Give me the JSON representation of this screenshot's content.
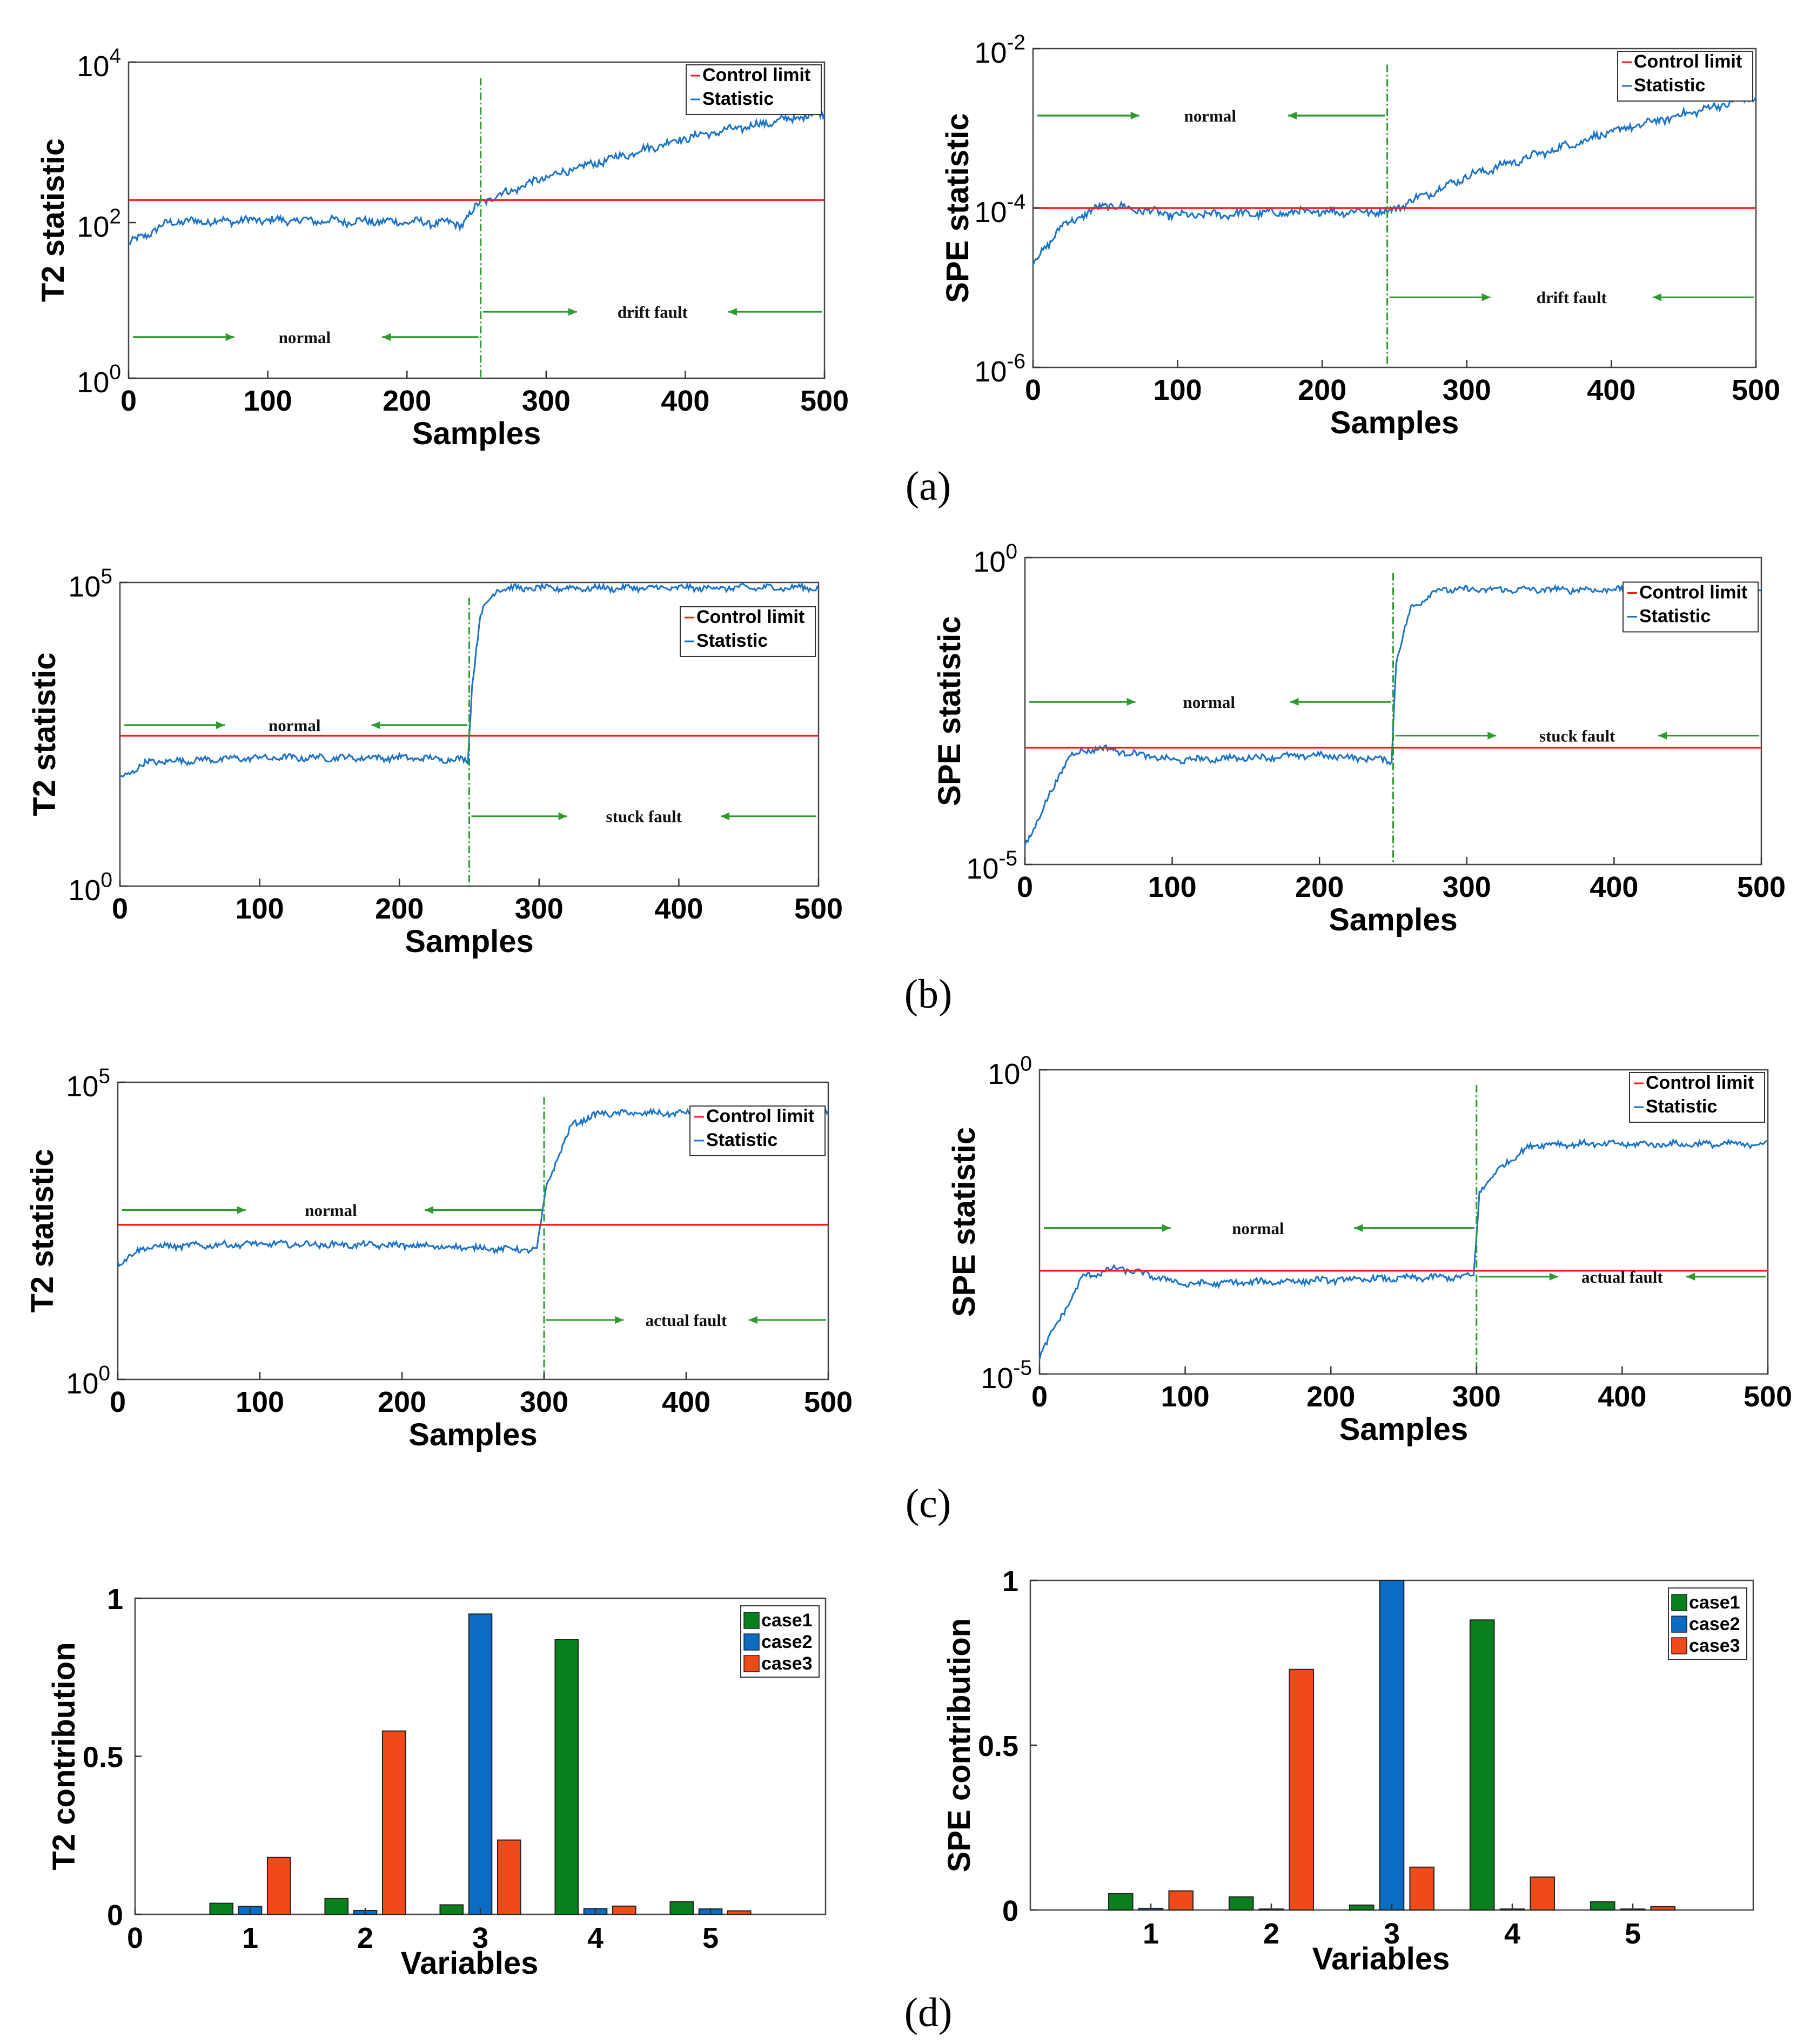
{
  "panel_labels": [
    "(a)",
    "(b)",
    "(c)",
    "(d)"
  ],
  "colors": {
    "statistic": "#1a73c8",
    "control_limit": "#ff1a1a",
    "fault_marker": "#2e9a2e",
    "arrow": "#2e9a2e",
    "case1": "#0a7f1d",
    "case2": "#0a6cc2",
    "case3": "#f04a1a"
  },
  "chart_data": [
    {
      "id": "a-t2",
      "type": "line",
      "scale": "log",
      "ylabel": "T2 statistic",
      "xlabel": "Samples",
      "xlim": [
        0,
        500
      ],
      "ylim": [
        1,
        10000
      ],
      "x_ticks": [
        "0",
        "100",
        "200",
        "300",
        "400",
        "500"
      ],
      "y_ticks": [
        {
          "base": "10",
          "exp": "0"
        },
        {
          "base": "10",
          "exp": "2"
        },
        {
          "base": "10",
          "exp": "4"
        }
      ],
      "legend": {
        "position": "top-right",
        "entries": [
          "Control limit",
          "Statistic"
        ]
      },
      "control_limit": 180,
      "fault_start": 253,
      "annotations": {
        "normal": "normal",
        "fault": "drift fault"
      },
      "statistic_profile": [
        [
          0,
          50
        ],
        [
          30,
          95
        ],
        [
          100,
          100
        ],
        [
          200,
          95
        ],
        [
          240,
          90
        ],
        [
          253,
          170
        ],
        [
          300,
          350
        ],
        [
          400,
          1100
        ],
        [
          500,
          2300
        ]
      ]
    },
    {
      "id": "a-spe",
      "type": "line",
      "scale": "log",
      "ylabel": "SPE statistic",
      "xlabel": "Samples",
      "xlim": [
        0,
        500
      ],
      "ylim": [
        1e-06,
        0.01
      ],
      "x_ticks": [
        "0",
        "100",
        "200",
        "300",
        "400",
        "500"
      ],
      "y_ticks": [
        {
          "base": "10",
          "exp": "-6"
        },
        {
          "base": "10",
          "exp": "-4"
        },
        {
          "base": "10",
          "exp": "-2"
        }
      ],
      "legend": {
        "position": "top-right",
        "entries": [
          "Control limit",
          "Statistic"
        ]
      },
      "control_limit": 0.0001,
      "fault_start": 245,
      "annotations": {
        "normal": "normal",
        "fault": "drift fault"
      },
      "statistic_profile": [
        [
          0,
          2e-05
        ],
        [
          20,
          6e-05
        ],
        [
          50,
          0.00011
        ],
        [
          100,
          8e-05
        ],
        [
          200,
          9e-05
        ],
        [
          245,
          9e-05
        ],
        [
          300,
          0.00025
        ],
        [
          400,
          0.0009
        ],
        [
          500,
          0.0025
        ]
      ]
    },
    {
      "id": "b-t2",
      "type": "line",
      "scale": "log",
      "ylabel": "T2 statistic",
      "xlabel": "Samples",
      "xlim": [
        0,
        500
      ],
      "ylim": [
        1,
        100000
      ],
      "x_ticks": [
        "0",
        "100",
        "200",
        "300",
        "400",
        "500"
      ],
      "y_ticks": [
        {
          "base": "10",
          "exp": "0"
        },
        {
          "base": "10",
          "exp": "5"
        }
      ],
      "legend": {
        "position": "top-right",
        "entries": [
          "Control limit",
          "Statistic"
        ]
      },
      "control_limit": 300,
      "fault_start": 250,
      "annotations": {
        "normal": "normal",
        "fault": "stuck fault"
      },
      "statistic_profile": [
        [
          0,
          60
        ],
        [
          20,
          110
        ],
        [
          100,
          130
        ],
        [
          200,
          130
        ],
        [
          249,
          120
        ],
        [
          252,
          2000
        ],
        [
          258,
          30000
        ],
        [
          270,
          80000
        ],
        [
          500,
          82000
        ]
      ]
    },
    {
      "id": "b-spe",
      "type": "line",
      "scale": "log",
      "ylabel": "SPE statistic",
      "xlabel": "Samples",
      "xlim": [
        0,
        500
      ],
      "ylim": [
        1e-05,
        1
      ],
      "x_ticks": [
        "0",
        "100",
        "200",
        "300",
        "400",
        "500"
      ],
      "y_ticks": [
        {
          "base": "10",
          "exp": "-5"
        },
        {
          "base": "10",
          "exp": "0"
        }
      ],
      "legend": {
        "position": "top-right",
        "entries": [
          "Control limit",
          "Statistic"
        ]
      },
      "control_limit": 0.0008,
      "fault_start": 250,
      "annotations": {
        "normal": "normal",
        "fault": "stuck fault"
      },
      "statistic_profile": [
        [
          0,
          2e-05
        ],
        [
          30,
          0.0006
        ],
        [
          50,
          0.0008
        ],
        [
          100,
          0.0005
        ],
        [
          200,
          0.0006
        ],
        [
          249,
          0.0005
        ],
        [
          252,
          0.02
        ],
        [
          262,
          0.15
        ],
        [
          280,
          0.3
        ],
        [
          500,
          0.3
        ]
      ]
    },
    {
      "id": "c-t2",
      "type": "line",
      "scale": "log",
      "ylabel": "T2 statistic",
      "xlabel": "Samples",
      "xlim": [
        0,
        500
      ],
      "ylim": [
        1,
        100000
      ],
      "x_ticks": [
        "0",
        "100",
        "200",
        "300",
        "400",
        "500"
      ],
      "y_ticks": [
        {
          "base": "10",
          "exp": "0"
        },
        {
          "base": "10",
          "exp": "5"
        }
      ],
      "legend": {
        "position": "top-right",
        "entries": [
          "Control limit",
          "Statistic"
        ]
      },
      "control_limit": 400,
      "fault_start": 300,
      "annotations": {
        "normal": "normal",
        "fault": "actual fault"
      },
      "statistic_profile": [
        [
          0,
          90
        ],
        [
          20,
          170
        ],
        [
          100,
          190
        ],
        [
          200,
          180
        ],
        [
          295,
          150
        ],
        [
          302,
          2000
        ],
        [
          320,
          20000
        ],
        [
          340,
          30000
        ],
        [
          500,
          30000
        ]
      ]
    },
    {
      "id": "c-spe",
      "type": "line",
      "scale": "log",
      "ylabel": "SPE statistic",
      "xlabel": "Samples",
      "xlim": [
        0,
        500
      ],
      "ylim": [
        1e-05,
        1
      ],
      "x_ticks": [
        "0",
        "100",
        "200",
        "300",
        "400",
        "500"
      ],
      "y_ticks": [
        {
          "base": "10",
          "exp": "-5"
        },
        {
          "base": "10",
          "exp": "0"
        }
      ],
      "legend": {
        "position": "top-right",
        "entries": [
          "Control limit",
          "Statistic"
        ]
      },
      "control_limit": 0.0005,
      "fault_start": 300,
      "annotations": {
        "normal": "normal",
        "fault": "actual fault"
      },
      "statistic_profile": [
        [
          0,
          2e-05
        ],
        [
          30,
          0.0004
        ],
        [
          55,
          0.00055
        ],
        [
          100,
          0.0003
        ],
        [
          200,
          0.00035
        ],
        [
          298,
          0.0004
        ],
        [
          302,
          0.01
        ],
        [
          320,
          0.03
        ],
        [
          340,
          0.06
        ],
        [
          500,
          0.06
        ]
      ]
    },
    {
      "id": "d-t2",
      "type": "bar",
      "ylabel": "T2 contribution",
      "xlabel": "Variables",
      "xlim": [
        0,
        6
      ],
      "ylim": [
        0,
        1
      ],
      "x_ticks": [
        "0",
        "1",
        "2",
        "3",
        "4",
        "5"
      ],
      "y_ticks": [
        "0",
        "0.5",
        "1"
      ],
      "legend": {
        "position": "top-right",
        "entries": [
          "case1",
          "case2",
          "case3"
        ]
      },
      "categories": [
        "1",
        "2",
        "3",
        "4",
        "5"
      ],
      "series": [
        {
          "name": "case1",
          "values": [
            0.035,
            0.05,
            0.03,
            0.87,
            0.04
          ]
        },
        {
          "name": "case2",
          "values": [
            0.025,
            0.012,
            0.95,
            0.018,
            0.017
          ]
        },
        {
          "name": "case3",
          "values": [
            0.18,
            0.58,
            0.235,
            0.026,
            0.011
          ]
        }
      ]
    },
    {
      "id": "d-spe",
      "type": "bar",
      "ylabel": "SPE contribution",
      "xlabel": "Variables",
      "xlim": [
        0,
        6
      ],
      "ylim": [
        0,
        1
      ],
      "x_ticks": [
        "1",
        "2",
        "3",
        "4",
        "5"
      ],
      "y_ticks": [
        "0",
        "0.5",
        "1"
      ],
      "legend": {
        "position": "top-right",
        "entries": [
          "case1",
          "case2",
          "case3"
        ]
      },
      "categories": [
        "1",
        "2",
        "3",
        "4",
        "5"
      ],
      "series": [
        {
          "name": "case1",
          "values": [
            0.05,
            0.04,
            0.015,
            0.88,
            0.025
          ]
        },
        {
          "name": "case2",
          "values": [
            0.005,
            0.003,
            1.0,
            0.003,
            0.003
          ]
        },
        {
          "name": "case3",
          "values": [
            0.058,
            0.73,
            0.13,
            0.1,
            0.01
          ]
        }
      ]
    }
  ]
}
